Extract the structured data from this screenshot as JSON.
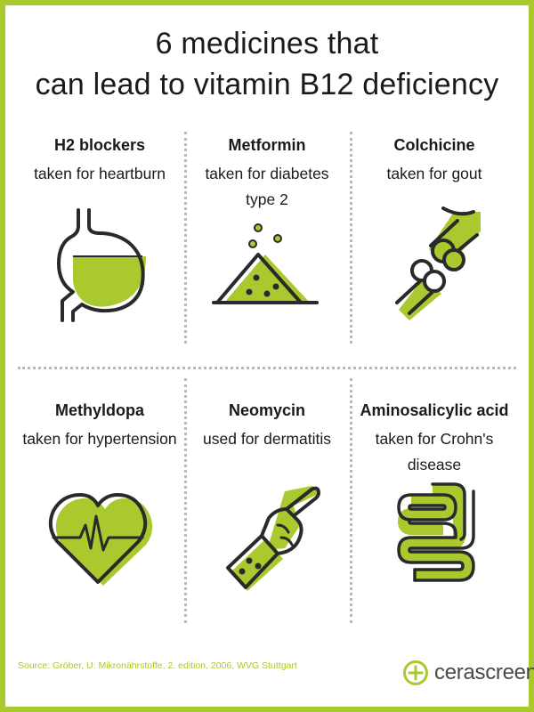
{
  "title": {
    "line1": "6 medicines that",
    "line2": "can lead to vitamin B12 deficiency"
  },
  "medicines": [
    {
      "name": "H2 blockers",
      "use": "taken for heartburn",
      "icon": "stomach-icon"
    },
    {
      "name": "Metformin",
      "use": "taken for diabetes\ntype 2",
      "icon": "powder-pile-icon"
    },
    {
      "name": "Colchicine",
      "use": "taken for gout",
      "icon": "bone-joint-icon"
    },
    {
      "name": "Methyldopa",
      "use": "taken for hypertension",
      "icon": "heart-pulse-icon"
    },
    {
      "name": "Neomycin",
      "use": "used for dermatitis",
      "icon": "pointing-hand-icon"
    },
    {
      "name": "Aminosalicylic acid",
      "use": "taken for Crohn's\ndisease",
      "icon": "intestine-icon"
    }
  ],
  "source": "Source: Gröber, U: Mikronährstoffe, 2. edition, 2006, WVG Stuttgart",
  "brand": {
    "name": "cerascreen",
    "reg": "®"
  },
  "colors": {
    "accent": "#a9c92f",
    "outline": "#2a2a2a",
    "divider": "#b8b8b8"
  }
}
